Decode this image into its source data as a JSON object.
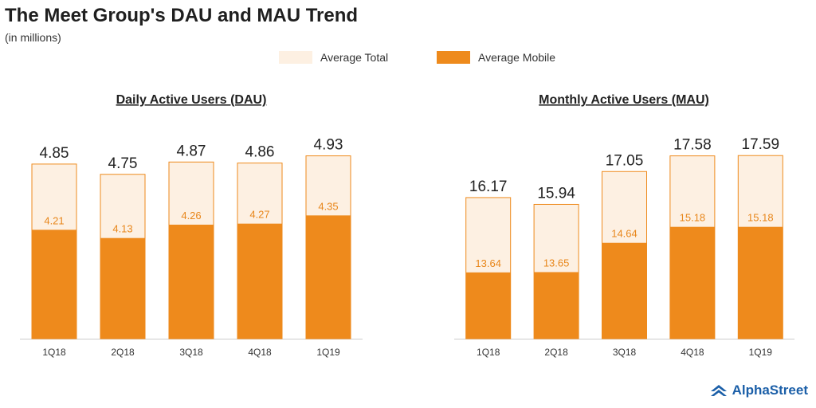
{
  "header": {
    "title": "The Meet Group's DAU and MAU Trend",
    "subtitle": "(in millions)"
  },
  "legend": {
    "total_label": "Average Total",
    "mobile_label": "Average Mobile"
  },
  "colors": {
    "total_fill": "#fdf0e2",
    "total_stroke": "#ee8a1c",
    "mobile_fill": "#ee8a1c",
    "mobile_label": "#fbe2c3",
    "inner_label": "#e8861a",
    "axis": "#cccccc",
    "brand": "#1b5fa8"
  },
  "chart_data": [
    {
      "type": "bar",
      "title": "Daily Active Users (DAU)",
      "categories": [
        "1Q18",
        "2Q18",
        "3Q18",
        "4Q18",
        "1Q19"
      ],
      "series": [
        {
          "name": "Average Total",
          "values": [
            4.85,
            4.75,
            4.87,
            4.86,
            4.93
          ]
        },
        {
          "name": "Average Mobile",
          "values": [
            4.21,
            4.13,
            4.26,
            4.27,
            4.35
          ]
        }
      ],
      "ylim": [
        3.15,
        4.95
      ]
    },
    {
      "type": "bar",
      "title": "Monthly Active Users (MAU)",
      "categories": [
        "1Q18",
        "2Q18",
        "3Q18",
        "4Q18",
        "1Q19"
      ],
      "series": [
        {
          "name": "Average Total",
          "values": [
            16.17,
            15.94,
            17.05,
            17.58,
            17.59
          ]
        },
        {
          "name": "Average Mobile",
          "values": [
            13.64,
            13.65,
            14.64,
            15.18,
            15.18
          ]
        }
      ],
      "ylim": [
        11.4,
        17.65
      ]
    }
  ],
  "brand": {
    "name": "AlphaStreet"
  }
}
